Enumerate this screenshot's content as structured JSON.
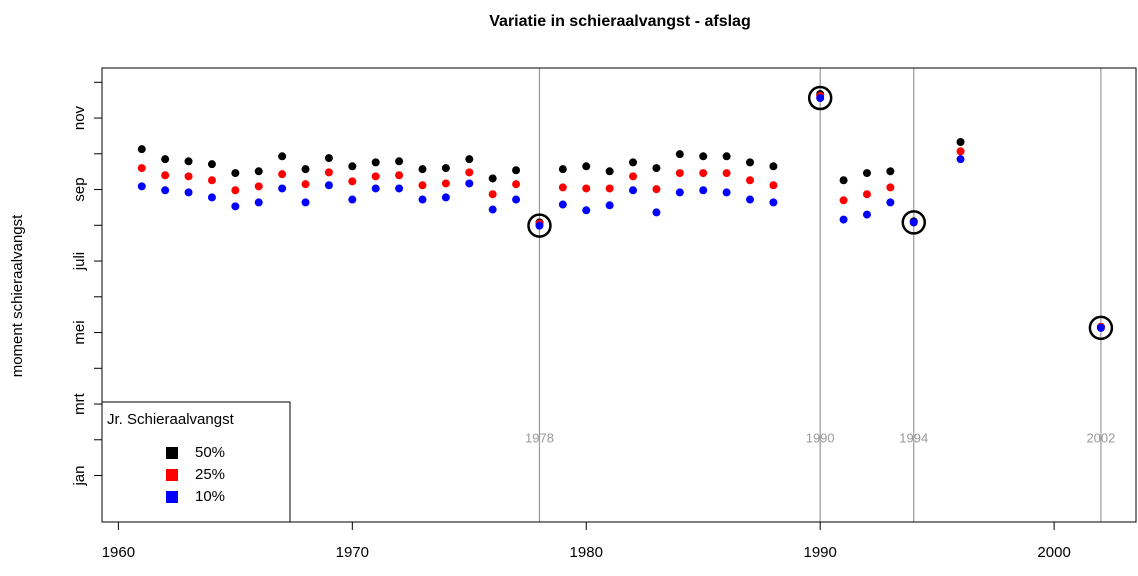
{
  "chart_data": {
    "type": "scatter",
    "title": "Variatie in schieraalvangst - afslag",
    "ylabel": "moment schieraalvangst",
    "x": [
      1961,
      1962,
      1963,
      1964,
      1965,
      1966,
      1967,
      1968,
      1969,
      1970,
      1971,
      1972,
      1973,
      1974,
      1975,
      1976,
      1977,
      1978,
      1979,
      1980,
      1981,
      1982,
      1983,
      1984,
      1985,
      1986,
      1987,
      1988,
      1990,
      1991,
      1992,
      1993,
      1994,
      1996,
      2002
    ],
    "series": [
      {
        "name": "50%",
        "color": "#000000",
        "values": [
          10.13,
          9.85,
          9.79,
          9.71,
          9.46,
          9.51,
          9.93,
          9.57,
          9.88,
          9.65,
          9.76,
          9.79,
          9.57,
          9.6,
          9.85,
          9.31,
          9.54,
          8.08,
          9.57,
          9.65,
          9.51,
          9.76,
          9.6,
          9.99,
          9.93,
          9.93,
          9.76,
          9.65,
          11.67,
          9.26,
          9.46,
          9.51,
          8.11,
          10.33,
          5.16
        ]
      },
      {
        "name": "25%",
        "color": "#ff0000",
        "values": [
          9.6,
          9.4,
          9.37,
          9.26,
          8.98,
          9.09,
          9.43,
          9.15,
          9.48,
          9.23,
          9.37,
          9.4,
          9.12,
          9.17,
          9.48,
          8.87,
          9.15,
          8.05,
          9.06,
          9.03,
          9.03,
          9.37,
          9.01,
          9.46,
          9.46,
          9.46,
          9.26,
          9.12,
          11.62,
          8.7,
          8.87,
          9.06,
          8.08,
          10.07,
          5.16
        ]
      },
      {
        "name": "10%",
        "color": "#0000ff",
        "values": [
          9.09,
          8.98,
          8.92,
          8.78,
          8.53,
          8.64,
          9.03,
          8.64,
          9.12,
          8.72,
          9.03,
          9.03,
          8.72,
          8.78,
          9.17,
          8.44,
          8.72,
          7.99,
          8.58,
          8.42,
          8.56,
          8.98,
          8.36,
          8.92,
          8.98,
          8.92,
          8.72,
          8.64,
          11.56,
          8.16,
          8.3,
          8.64,
          8.08,
          9.85,
          5.13
        ]
      }
    ],
    "xlim": [
      1959.3,
      2003.5
    ],
    "ylim": [
      -0.3,
      12.4
    ],
    "xticks": [
      1960,
      1970,
      1980,
      1990,
      2000
    ],
    "yticks": [
      {
        "value": 1,
        "label": "jan"
      },
      {
        "value": 3,
        "label": "mrt"
      },
      {
        "value": 5,
        "label": "mei"
      },
      {
        "value": 7,
        "label": "juli"
      },
      {
        "value": 9,
        "label": "sep"
      },
      {
        "value": 11,
        "label": "nov"
      }
    ],
    "yminorticks": [
      2,
      4,
      6,
      8,
      10,
      12
    ],
    "vlines": [
      1978,
      1990,
      1994,
      2002
    ],
    "vline_color": "#999999",
    "legend_title": "Jr. Schieraalvangst",
    "legend": "bottomleft",
    "grid": false
  }
}
